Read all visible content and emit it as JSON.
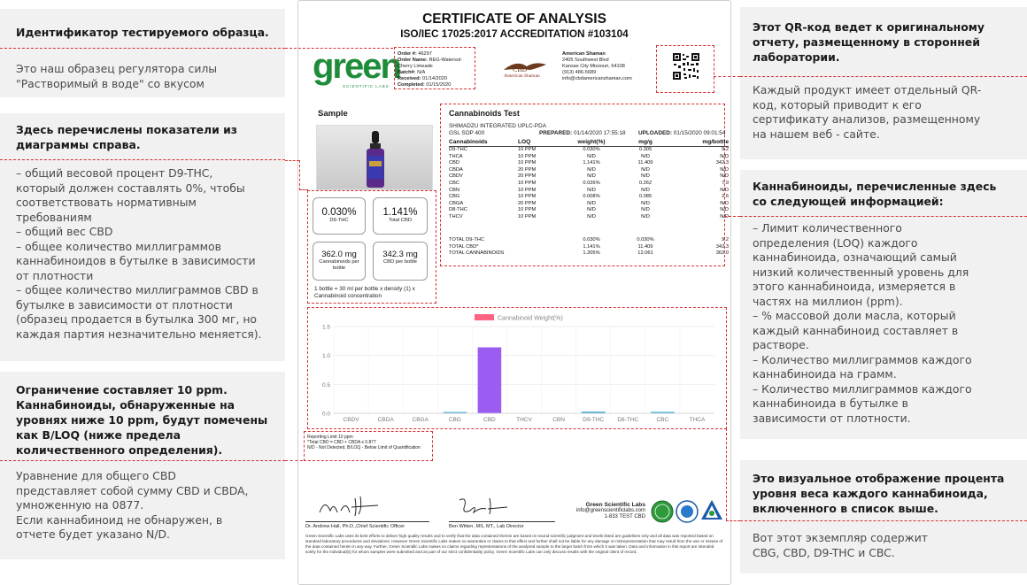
{
  "left_panels": [
    {
      "heading": "Идентификатор тестируемого образца.",
      "text": "Это наш  образец регулятора силы\n\"Растворимый в воде\" со вкусом"
    },
    {
      "heading": "Здесь перечислены показатели из\nдиаграммы справа.",
      "text": "– общий весовой процент D9-THC,\nкоторый должен составлять 0%, чтобы\nсоответствовать нормативным\nтребованиям\n– общий вес CBD\n– общее количество миллиграммов\nканнабиноидов в бутылке в зависимости\nот плотности\n– общее количество миллиграммов CBD в\nбутылке в зависимости от плотности\n(образец продается в бутылка 300 мг, но\nкаждая партия незначительно меняется)."
    },
    {
      "heading": "Ограничение  составляет 10 ppm.\nКаннабиноиды, обнаруженные на\nуровнях ниже 10 ppm, будут помечены\nкак B/LOQ (ниже предела\nколичественного определения).",
      "text": "Уравнение для общего CBD\nпредставляет собой сумму CBD и CBDA,\nумноженную на 0877.\nЕсли каннабиноид не обнаружен, в\nотчете будет указано N/D."
    }
  ],
  "right_panels": [
    {
      "heading": "Этот QR-код ведет к оригинальному\nотчету, размещенному в сторонней\nлаборатории.",
      "text": "Каждый продукт имеет отдельный QR-\nкод, который приводит к его\nсертификату анализов, размещенному\nна нашем веб - сайте."
    },
    {
      "heading": "Каннабиноиды, перечисленные здесь\nсо следующей информацией:",
      "text": "– Лимит количественного\nопределения (LOQ) каждого\nканнабиноида, означающий самый\nнизкий количественный уровень для\nэтого каннабиноида, измеряется в\nчастях на миллион (ppm).\n– % массовой доли масла, который\nкаждый каннабиноид составляет в\nрастворе.\n– Количество миллиграммов каждого\nканнабиноида на грамм.\n– Количество миллиграммов каждого\nканнабиноида в бутылке в\nзависимости от плотности."
    },
    {
      "heading": "Это визуальное отображение процента\nуровня веса каждого каннабиноида,\nвключенного в список выше.",
      "text": "Вот этот экземпляр содержит\nCBG, CBD, D9-THC и CBC."
    }
  ],
  "certificate": {
    "title": "CERTIFICATE OF ANALYSIS",
    "subtitle": "ISO/IEC 17025:2017 ACCREDITATION #103104",
    "logo_word": "green",
    "logo_sub": "SCIENTIFIC LABS",
    "order": {
      "order_no_label": "Order #:",
      "order_no": "46297",
      "order_name_label": "Order Name:",
      "order_name": "REG-Watersol-Cherry Limeade",
      "batch_label": "Batch#:",
      "batch": "N/A",
      "received_label": "Received:",
      "received": "01/14/2020",
      "completed_label": "Completed:",
      "completed": "01/15/2020"
    },
    "client_logo_text": "CBD",
    "client_logo_sub": "American Shaman",
    "client": {
      "name": "American Shaman",
      "address1": "2405 Southwest Blvd",
      "address2": "Kansas City Missouri, 64108",
      "phone": "(913) 486-5689",
      "email": "info@cbdamericanshaman.com"
    },
    "sample_label": "Sample",
    "stats": [
      {
        "value": "0.030%",
        "label": "D9-THC"
      },
      {
        "value": "1.141%",
        "label": "Total CBD"
      },
      {
        "value": "362.0 mg",
        "label": "Cannabinoids per bottle"
      },
      {
        "value": "342.3 mg",
        "label": "CBD per bottle"
      }
    ],
    "formula_note": "1 bottle = 30 ml per bottle x density (1) x Cannabinoid concentration",
    "test": {
      "title": "Cannabinoids Test",
      "method": "SHIMADZU INTEGRATED UPLC-PDA",
      "sop": "GSL SOP 400",
      "prepared_label": "PREPARED:",
      "prepared": "01/14/2020 17:55:18",
      "uploaded_label": "UPLOADED:",
      "uploaded": "01/15/2020 09:01:54",
      "headers": [
        "Cannabinoids",
        "LOQ",
        "weight(%)",
        "mg/g",
        "mg/bottle"
      ],
      "rows": [
        [
          "D9-THC",
          "10 PPM",
          "0.030%",
          "0.305",
          "9.2"
        ],
        [
          "THCA",
          "10 PPM",
          "N/D",
          "N/D",
          "N/D"
        ],
        [
          "CBD",
          "10 PPM",
          "1.141%",
          "11.409",
          "342.3"
        ],
        [
          "CBDA",
          "20 PPM",
          "N/D",
          "N/D",
          "N/D"
        ],
        [
          "CBDV",
          "20 PPM",
          "N/D",
          "N/D",
          "N/D"
        ],
        [
          "CBC",
          "10 PPM",
          "0.026%",
          "0.262",
          "7.9"
        ],
        [
          "CBN",
          "10 PPM",
          "N/D",
          "N/D",
          "N/D"
        ],
        [
          "CBG",
          "10 PPM",
          "0.008%",
          "0.085",
          "2.6"
        ],
        [
          "CBGA",
          "20 PPM",
          "N/D",
          "N/D",
          "N/D"
        ],
        [
          "D8-THC",
          "10 PPM",
          "N/D",
          "N/D",
          "N/D"
        ],
        [
          "THCV",
          "10 PPM",
          "N/D",
          "N/D",
          "N/D"
        ]
      ],
      "totals": [
        [
          "TOTAL D9-THC",
          "0.030%",
          "0.030%",
          "9.2"
        ],
        [
          "TOTAL CBD*",
          "1.141%",
          "11.409",
          "342.3"
        ],
        [
          "TOTAL CANNABINOIDS",
          "1.205%",
          "12.061",
          "362.0"
        ]
      ]
    },
    "footnotes": [
      "Reporting Limit 10 ppm",
      "*Total CBD = CBD + CBDA x 0.877",
      "N/D - Not Detected, B/LOQ - Below Limit of Quantification"
    ],
    "signatures": [
      {
        "name": "Dr. Andrew Hall, Ph.D.,Chief Scientific Officer"
      },
      {
        "name": "Ben Witten, MS, MT., Lab Director"
      }
    ],
    "lab_contact": {
      "name": "Green Scientific Labs",
      "email": "info@greenscientificlabs.com",
      "phone": "1-833 TEST CBD"
    },
    "disclaimer": "Green Scientific Labs uses its best efforts to deliver high quality results and to verify that the data contained therein are based on sound scientific judgment and levels listed are guidelines only and all data was reported based on standard laboratory procedures and deviations. However Green Scientific Labs makes no warranties or claims to that effect and further shall not be liable for any damage or misrepresentation that may result from the use or misuse of the data contained herein in any way. Further, Green Scientific Labs makes no claims regarding representations of the analyzed sample to the larger batch from which it was taken. Data and information in this report are intended solely for the individual(s) for whom samples were submitted and as part of our strict confidentiality policy. Green Scientific Labs can only discuss results with the original client of record."
  },
  "chart_data": {
    "type": "bar",
    "legend": "Cannabinoid Weight(%)",
    "categories": [
      "CBDV",
      "CBDA",
      "CBGA",
      "CBG",
      "CBD",
      "THCV",
      "CBN",
      "D9-THC",
      "D8-THC",
      "CBC",
      "THCA"
    ],
    "values": [
      0,
      0,
      0,
      0.008,
      1.141,
      0,
      0,
      0.03,
      0,
      0.026,
      0
    ],
    "y_ticks": [
      "1.5",
      "1.0",
      "0.5",
      "0.0"
    ],
    "ylim": [
      0,
      1.5
    ],
    "grid": true,
    "legend_position": "top",
    "colors": {
      "main": "#9b5cf2",
      "small": "#4fb3d9",
      "legend": "#ff6384"
    }
  }
}
